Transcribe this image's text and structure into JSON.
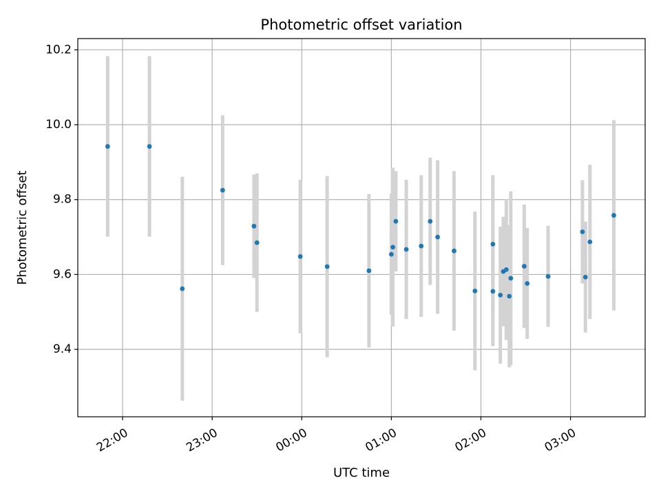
{
  "chart_data": {
    "type": "scatter",
    "title": "Photometric offset variation",
    "xlabel": "UTC time",
    "ylabel": "Photometric offset",
    "x_ticks": [
      "22:00",
      "23:00",
      "00:00",
      "01:00",
      "02:00",
      "03:00"
    ],
    "y_ticks": [
      "9.4",
      "9.6",
      "9.8",
      "10.0",
      "10.2"
    ],
    "ylim": [
      9.22,
      10.23
    ],
    "grid": true,
    "colors": {
      "point": "#1f77b4",
      "errorbar": "#d3d3d3",
      "grid": "#b0b0b0"
    },
    "points": [
      {
        "x": "21:50",
        "y": 9.942,
        "yerr": 0.241
      },
      {
        "x": "22:18",
        "y": 9.942,
        "yerr": 0.241
      },
      {
        "x": "22:40",
        "y": 9.562,
        "yerr": 0.299
      },
      {
        "x": "23:07",
        "y": 9.825,
        "yerr": 0.2
      },
      {
        "x": "23:28",
        "y": 9.729,
        "yerr": 0.138
      },
      {
        "x": "23:30",
        "y": 9.685,
        "yerr": 0.185
      },
      {
        "x": "23:59",
        "y": 9.648,
        "yerr": 0.205
      },
      {
        "x": "00:17",
        "y": 9.621,
        "yerr": 0.242
      },
      {
        "x": "00:45",
        "y": 9.61,
        "yerr": 0.205
      },
      {
        "x": "01:00",
        "y": 9.654,
        "yerr": 0.162
      },
      {
        "x": "01:01",
        "y": 9.673,
        "yerr": 0.212
      },
      {
        "x": "01:03",
        "y": 9.742,
        "yerr": 0.134
      },
      {
        "x": "01:10",
        "y": 9.667,
        "yerr": 0.186
      },
      {
        "x": "01:20",
        "y": 9.676,
        "yerr": 0.189
      },
      {
        "x": "01:26",
        "y": 9.742,
        "yerr": 0.17
      },
      {
        "x": "01:31",
        "y": 9.7,
        "yerr": 0.205
      },
      {
        "x": "01:42",
        "y": 9.663,
        "yerr": 0.213
      },
      {
        "x": "01:56",
        "y": 9.556,
        "yerr": 0.212
      },
      {
        "x": "02:08",
        "y": 9.681,
        "yerr": 0.184
      },
      {
        "x": "02:08",
        "y": 9.555,
        "yerr": 0.146
      },
      {
        "x": "02:13",
        "y": 9.545,
        "yerr": 0.183
      },
      {
        "x": "02:15",
        "y": 9.608,
        "yerr": 0.146
      },
      {
        "x": "02:17",
        "y": 9.613,
        "yerr": 0.188
      },
      {
        "x": "02:19",
        "y": 9.542,
        "yerr": 0.19
      },
      {
        "x": "02:20",
        "y": 9.59,
        "yerr": 0.232
      },
      {
        "x": "02:29",
        "y": 9.622,
        "yerr": 0.165
      },
      {
        "x": "02:31",
        "y": 9.576,
        "yerr": 0.148
      },
      {
        "x": "02:45",
        "y": 9.595,
        "yerr": 0.135
      },
      {
        "x": "03:08",
        "y": 9.714,
        "yerr": 0.138
      },
      {
        "x": "03:10",
        "y": 9.593,
        "yerr": 0.148
      },
      {
        "x": "03:13",
        "y": 9.687,
        "yerr": 0.206
      },
      {
        "x": "03:29",
        "y": 9.758,
        "yerr": 0.254
      }
    ]
  }
}
